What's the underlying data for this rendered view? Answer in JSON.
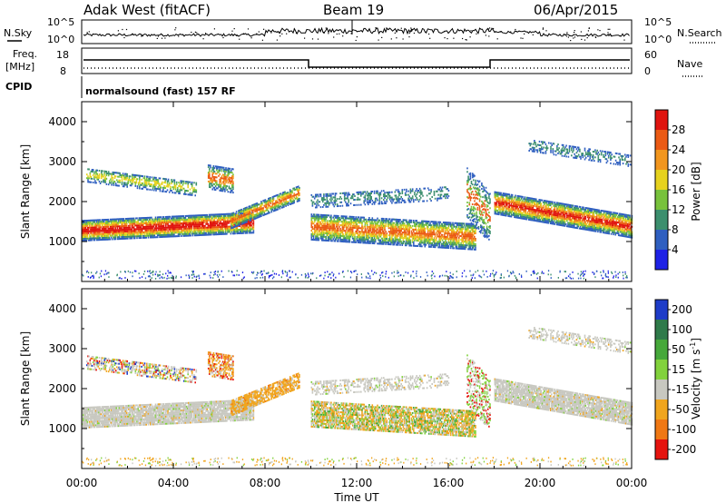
{
  "header": {
    "station": "Adak West (fitACF)",
    "beam": "Beam 19",
    "date": "06/Apr/2015"
  },
  "left_labels": {
    "nsky": "N.Sky",
    "freq": "Freq.",
    "freq_unit": "[MHz]",
    "cpid": "CPID"
  },
  "right_labels": {
    "nsearch": "N.Search",
    "nave": "Nave"
  },
  "noise_axis": {
    "left_ticks": [
      "10^5",
      "10^0"
    ],
    "right_ticks": [
      "10^5",
      "10^0"
    ]
  },
  "freq_axis": {
    "left_ticks": [
      "18",
      "8"
    ],
    "right_ticks": [
      "60",
      "0"
    ]
  },
  "cpid_text": "normalsound (fast) 157 RF",
  "chart_data": [
    {
      "type": "heatmap",
      "ylabel": "Slant Range [km]",
      "yticks": [
        1000,
        2000,
        3000,
        4000
      ],
      "ylim": [
        0,
        4500
      ],
      "xlim_hours": [
        0,
        24
      ],
      "colorbar": {
        "label": "Power [dB]",
        "ticks": [
          "4",
          "8",
          "12",
          "16",
          "20",
          "24",
          "28"
        ],
        "colors": [
          "#1e22e6",
          "#2f5fc0",
          "#3c8f6e",
          "#78c23c",
          "#e6d21e",
          "#f2961e",
          "#eb5a14",
          "#e0140f"
        ]
      }
    },
    {
      "type": "heatmap",
      "ylabel": "Slant Range [km]",
      "yticks": [
        1000,
        2000,
        3000,
        4000
      ],
      "ylim": [
        0,
        4500
      ],
      "xlim_hours": [
        0,
        24
      ],
      "colorbar": {
        "label": "Velocity [m s^-1]",
        "ticks": [
          "200",
          "100",
          "50",
          "15",
          "-15",
          "-50",
          "-100",
          "-200"
        ],
        "colors": [
          "#1e3cc8",
          "#2f7a4a",
          "#46a83a",
          "#82d23c",
          "#c8c8c0",
          "#f0a51e",
          "#f07814",
          "#e6140f"
        ]
      }
    }
  ],
  "x_axis": {
    "ticks": [
      "00:00",
      "04:00",
      "08:00",
      "12:00",
      "16:00",
      "20:00",
      "00:00"
    ],
    "label": "Time UT"
  }
}
